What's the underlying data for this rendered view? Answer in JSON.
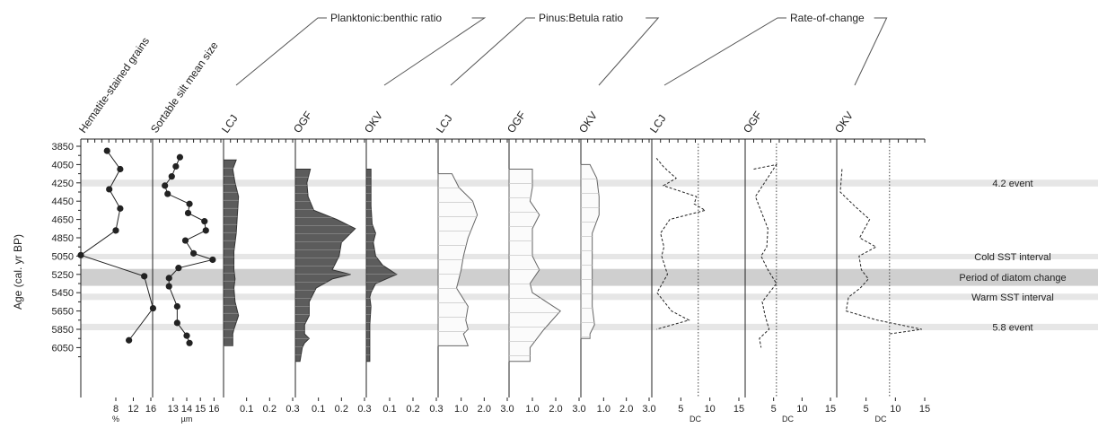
{
  "chart_data": {
    "type": "line",
    "y_axis": {
      "label": "Age (cal. yr BP)",
      "ticks": [
        3850,
        4050,
        4250,
        4450,
        4650,
        4850,
        5050,
        5250,
        5450,
        5650,
        5850,
        6050
      ],
      "range": [
        3850,
        6250
      ]
    },
    "bands": [
      {
        "from": 4215,
        "to": 4290,
        "label": "4.2 event",
        "shade": "light"
      },
      {
        "from": 5025,
        "to": 5085,
        "label": "Cold SST interval",
        "shade": "light"
      },
      {
        "from": 5190,
        "to": 5375,
        "label": "Period of diatom change",
        "shade": "dark"
      },
      {
        "from": 5460,
        "to": 5530,
        "label": "Warm SST interval",
        "shade": "light"
      },
      {
        "from": 5790,
        "to": 5860,
        "label": "5.8 event",
        "shade": "light"
      }
    ],
    "panels": [
      {
        "id": "hematite",
        "label": "Hematite-stained grains",
        "unit": "%",
        "style": "points",
        "ticks": [
          "8",
          "12",
          "16"
        ],
        "tick_values": [
          8,
          12,
          16
        ],
        "xlim": [
          0,
          16
        ],
        "y": [
          3900,
          4100,
          4320,
          4530,
          4770,
          5040,
          5270,
          5620,
          5970
        ],
        "x": [
          6,
          9,
          6.5,
          9,
          8,
          0,
          14.5,
          16.5,
          11
        ]
      },
      {
        "id": "sortable-silt",
        "label": "Sortable silt mean size",
        "unit": "µm",
        "style": "points",
        "ticks": [
          "13",
          "14",
          "15",
          "16"
        ],
        "tick_values": [
          13,
          14,
          15,
          16
        ],
        "xlim": [
          11.5,
          16.5
        ],
        "y": [
          3970,
          4070,
          4180,
          4280,
          4370,
          4480,
          4580,
          4670,
          4770,
          4880,
          5020,
          5090,
          5180,
          5290,
          5380,
          5600,
          5780,
          5920,
          6000
        ],
        "x": [
          13.5,
          13.2,
          12.9,
          12.4,
          12.6,
          14.2,
          14.1,
          15.3,
          15.4,
          13.9,
          14.5,
          15.9,
          13.4,
          12.7,
          12.7,
          13.3,
          13.3,
          14,
          14.2
        ]
      },
      {
        "id": "pb-lcj",
        "group": "Planktonic:benthic ratio",
        "label": "LCJ",
        "style": "area-dark",
        "ticks": [
          "0.1",
          "0.2",
          "0.3"
        ],
        "tick_values": [
          0.1,
          0.2,
          0.3
        ],
        "xlim": [
          0,
          0.3
        ],
        "y": [
          4000,
          4100,
          4250,
          4400,
          4600,
          4800,
          5000,
          5200,
          5300,
          5400,
          5550,
          5700,
          5850,
          5900,
          6030
        ],
        "x": [
          0.055,
          0.04,
          0.05,
          0.065,
          0.06,
          0.055,
          0.045,
          0.045,
          0.05,
          0.045,
          0.05,
          0.065,
          0.045,
          0.04,
          0.04
        ]
      },
      {
        "id": "pb-ogf",
        "group": "Planktonic:benthic ratio",
        "label": "OGF",
        "style": "area-dark",
        "ticks": [
          "0.1",
          "0.2",
          "0.3"
        ],
        "tick_values": [
          0.1,
          0.2,
          0.3
        ],
        "xlim": [
          0,
          0.3
        ],
        "y": [
          4100,
          4250,
          4400,
          4550,
          4650,
          4700,
          4750,
          4900,
          5050,
          5200,
          5250,
          5300,
          5400,
          5550,
          5700,
          5800,
          5900,
          5950,
          6000,
          6050,
          6200
        ],
        "x": [
          0.065,
          0.05,
          0.055,
          0.08,
          0.18,
          0.22,
          0.26,
          0.2,
          0.19,
          0.16,
          0.24,
          0.16,
          0.09,
          0.06,
          0.06,
          0.04,
          0.04,
          0.06,
          0.04,
          0.03,
          0.02
        ]
      },
      {
        "id": "pb-okv",
        "group": "Planktonic:benthic ratio",
        "label": "OKV",
        "style": "area-dark",
        "ticks": [
          "0.1",
          "0.2",
          "0.3"
        ],
        "tick_values": [
          0.1,
          0.2,
          0.3
        ],
        "xlim": [
          0,
          0.3
        ],
        "y": [
          4100,
          4300,
          4500,
          4700,
          4800,
          4900,
          5050,
          5150,
          5250,
          5350,
          5450,
          5500,
          5600,
          5800,
          5950,
          6200
        ],
        "x": [
          0.02,
          0.02,
          0.02,
          0.025,
          0.04,
          0.03,
          0.04,
          0.07,
          0.13,
          0.04,
          0.02,
          0.015,
          0.02,
          0.015,
          0.015,
          0.015
        ]
      },
      {
        "id": "pinus-lcj",
        "group": "Pinus:Betula ratio",
        "label": "LCJ",
        "style": "area-light",
        "ticks": [
          "1.0",
          "2.0",
          "3.0"
        ],
        "tick_values": [
          1,
          2,
          3
        ],
        "xlim": [
          0,
          3
        ],
        "y": [
          4150,
          4300,
          4450,
          4600,
          4850,
          5050,
          5200,
          5400,
          5600,
          5750,
          5850,
          5900,
          6030
        ],
        "x": [
          0.6,
          0.9,
          1.5,
          1.7,
          1.3,
          1.1,
          1.0,
          0.8,
          1.3,
          1.2,
          1.3,
          1.1,
          1.3
        ]
      },
      {
        "id": "pinus-ogf",
        "group": "Pinus:Betula ratio",
        "label": "OGF",
        "style": "area-light",
        "ticks": [
          "1.0",
          "2.0",
          "3.0"
        ],
        "tick_values": [
          1,
          2,
          3
        ],
        "xlim": [
          0,
          3
        ],
        "y": [
          4100,
          4300,
          4450,
          4600,
          4750,
          5050,
          5200,
          5350,
          5450,
          5550,
          5650,
          5850,
          6050,
          6200
        ],
        "x": [
          1.0,
          1.0,
          0.9,
          1.3,
          1.0,
          1.0,
          1.3,
          0.9,
          1.0,
          1.6,
          2.2,
          1.5,
          0.9,
          0.9
        ]
      },
      {
        "id": "pinus-okv",
        "group": "Pinus:Betula ratio",
        "label": "OKV",
        "style": "area-light",
        "ticks": [
          "1.0",
          "2.0",
          "3.0"
        ],
        "tick_values": [
          1,
          2,
          3
        ],
        "xlim": [
          0,
          3
        ],
        "y": [
          4050,
          4200,
          4400,
          4600,
          4800,
          5000,
          5200,
          5400,
          5600,
          5800,
          5900,
          5950
        ],
        "x": [
          0.4,
          0.7,
          0.8,
          0.8,
          0.5,
          0.5,
          0.5,
          0.5,
          0.5,
          0.6,
          0.4,
          0.4
        ]
      },
      {
        "id": "roc-lcj",
        "group": "Rate-of-change",
        "label": "LCJ",
        "style": "dashed",
        "unit": "DC",
        "ticks": [
          "5",
          "10",
          "15"
        ],
        "tick_values": [
          5,
          10,
          15
        ],
        "xlim": [
          0,
          15
        ],
        "threshold": 8,
        "y": [
          3980,
          4080,
          4200,
          4280,
          4400,
          4480,
          4550,
          4650,
          4800,
          4950,
          5050,
          5250,
          5450,
          5650,
          5750,
          5850
        ],
        "x": [
          0.8,
          2.1,
          4.2,
          2,
          7.7,
          7.3,
          9.2,
          3.1,
          1.5,
          2.1,
          1.7,
          2.7,
          0.9,
          3.4,
          6.4,
          0.8
        ]
      },
      {
        "id": "roc-ogf",
        "group": "Rate-of-change",
        "label": "OGF",
        "style": "dashed",
        "unit": "DC",
        "ticks": [
          "5",
          "10",
          "15"
        ],
        "tick_values": [
          5,
          10,
          15
        ],
        "xlim": [
          0,
          15
        ],
        "threshold": 5.5,
        "y": [
          4100,
          4050,
          4400,
          4750,
          4950,
          5050,
          5200,
          5350,
          5550,
          5700,
          5850,
          5950,
          6050
        ],
        "x": [
          1.5,
          5.5,
          1.8,
          4,
          3.8,
          2.8,
          4,
          5.5,
          3,
          3.5,
          4.2,
          2.5,
          2.8
        ]
      },
      {
        "id": "roc-okv",
        "group": "Rate-of-change",
        "label": "OKV",
        "style": "dashed",
        "unit": "DC",
        "ticks": [
          "5",
          "10",
          "15"
        ],
        "tick_values": [
          5,
          10,
          15
        ],
        "xlim": [
          0,
          15
        ],
        "threshold": 9,
        "y": [
          4100,
          4350,
          4500,
          4650,
          4850,
          4950,
          5050,
          5200,
          5300,
          5400,
          5500,
          5650,
          5750,
          5850,
          5900
        ],
        "x": [
          0.9,
          0.6,
          3,
          5.6,
          3.9,
          6.7,
          3.8,
          4.2,
          5.4,
          4,
          2,
          1.6,
          6.9,
          14.5,
          9
        ]
      }
    ]
  }
}
